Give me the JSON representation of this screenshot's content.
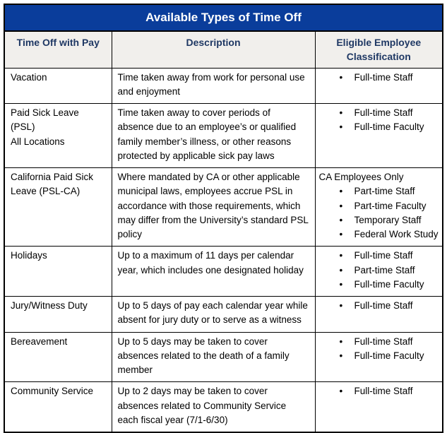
{
  "table": {
    "title": "Available Types of Time Off",
    "columns": [
      "Time Off with Pay",
      "Description",
      "Eligible Employee Classification"
    ],
    "rows": [
      {
        "type": "Vacation",
        "description": "Time taken away from work for personal use and enjoyment",
        "eligibility": [
          "Full-time Staff"
        ]
      },
      {
        "type": "Paid Sick Leave (PSL)\nAll Locations",
        "description": "Time taken away to cover periods of absence due to an employee’s or qualified family member’s illness, or other reasons protected by applicable sick pay laws",
        "eligibility": [
          "Full-time Staff",
          "Full-time Faculty"
        ]
      },
      {
        "type": "California Paid Sick\nLeave (PSL-CA)",
        "description": "Where mandated by CA or other applicable municipal laws, employees accrue PSL in accordance with those requirements, which may differ from the University’s standard PSL policy",
        "eligibility_note": "CA Employees Only",
        "eligibility": [
          "Part-time Staff",
          "Part-time Faculty",
          "Temporary Staff",
          "Federal Work Study"
        ]
      },
      {
        "type": "Holidays",
        "description": "Up to a maximum of 11 days per calendar year, which includes one designated holiday",
        "eligibility": [
          "Full-time Staff",
          "Part-time Staff",
          "Full-time Faculty"
        ]
      },
      {
        "type": "Jury/Witness Duty",
        "description": "Up to 5 days of pay each calendar year while absent for jury duty or to serve as a witness",
        "eligibility": [
          "Full-time Staff"
        ]
      },
      {
        "type": "Bereavement",
        "description": "Up to 5 days may be taken to cover absences related to the death of a family member",
        "eligibility": [
          "Full-time Staff",
          "Full-time Faculty"
        ]
      },
      {
        "type": "Community Service",
        "description": "Up to 2 days may be taken to cover absences related to Community Service each fiscal year (7/1-6/30)",
        "eligibility": [
          "Full-time Staff"
        ]
      }
    ]
  },
  "colors": {
    "title_bg": "#0A3D9B",
    "title_text": "#FFFFFF",
    "column_header_bg": "#F1EFEC",
    "column_header_text": "#1F3864",
    "body_text": "#000000",
    "border": "#000000"
  }
}
